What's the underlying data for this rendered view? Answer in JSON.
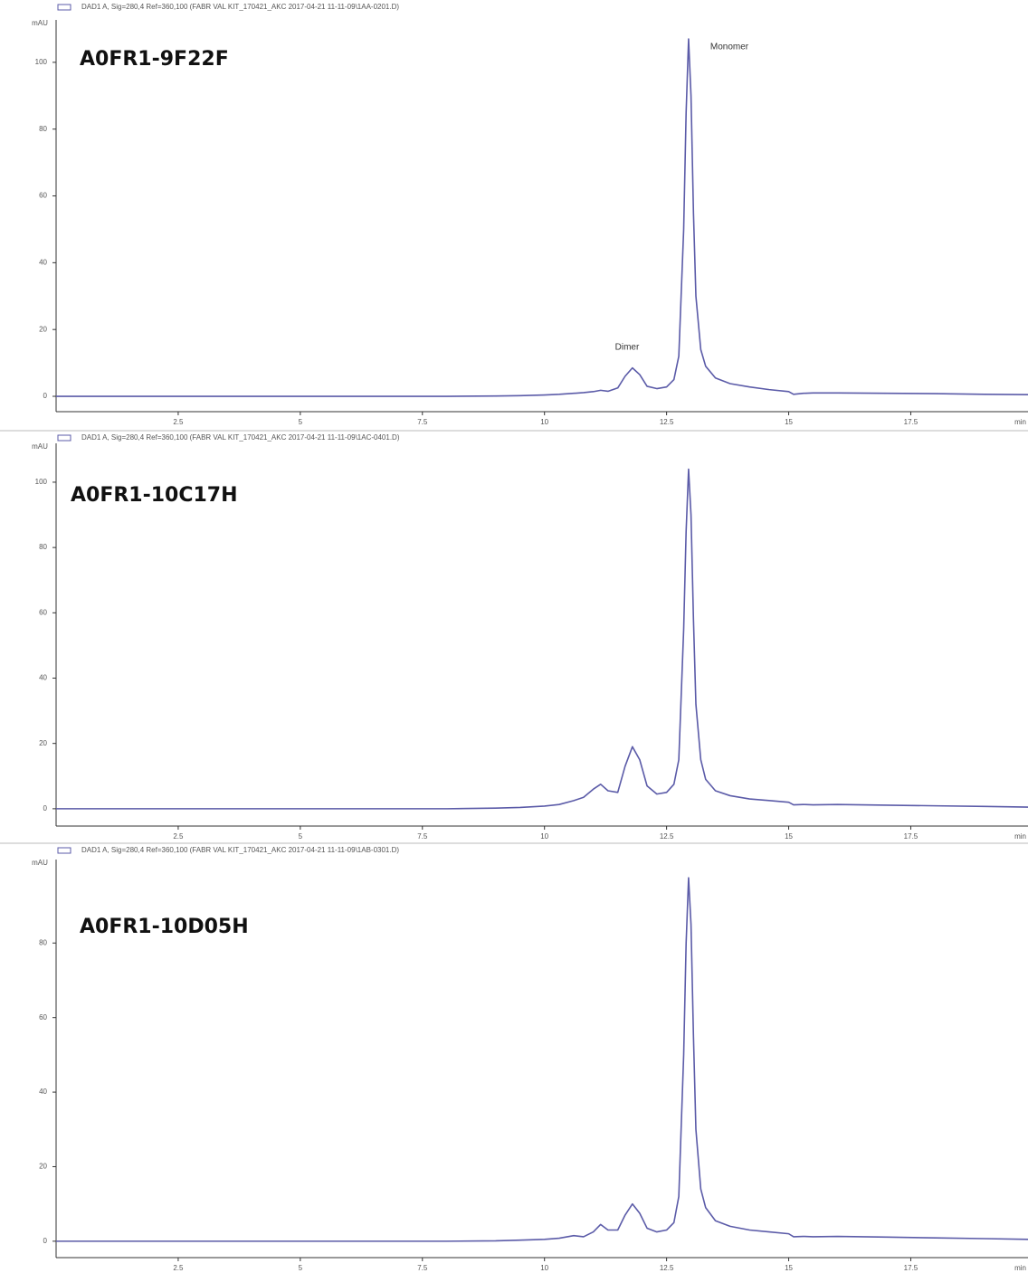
{
  "chart_data": [
    {
      "type": "line",
      "title": "A0FR1-9F22F",
      "y_label": "mAU",
      "x_label": "min",
      "annotations": [
        "Dimer",
        "Monomer"
      ],
      "x": [
        0,
        2,
        4,
        6,
        8,
        9,
        9.5,
        10,
        10.3,
        10.6,
        10.8,
        11,
        11.15,
        11.3,
        11.5,
        11.65,
        11.8,
        11.95,
        12.1,
        12.3,
        12.5,
        12.65,
        12.75,
        12.85,
        12.9,
        12.95,
        13,
        13.05,
        13.1,
        13.2,
        13.3,
        13.5,
        13.8,
        14.2,
        14.6,
        15,
        15.1,
        15.3,
        15.5,
        16,
        17,
        18,
        19,
        19.9
      ],
      "series": [
        {
          "name": "DAD1 A, Sig=280,4 Ref=360,100 (FABR VAL KIT_170421_AKC 2017-04-21 11-11-09\\1AA-0201.D)",
          "color": "#5b5ba8",
          "values": [
            0,
            0,
            0,
            0,
            0,
            0.1,
            0.2,
            0.4,
            0.6,
            0.9,
            1.1,
            1.4,
            1.8,
            1.5,
            2.5,
            6,
            8.5,
            6.5,
            3,
            2.3,
            2.8,
            5,
            12,
            50,
            85,
            107,
            90,
            55,
            30,
            14,
            9,
            5.5,
            3.8,
            2.8,
            2,
            1.4,
            0.6,
            0.9,
            1,
            1,
            0.9,
            0.8,
            0.6,
            0.5
          ]
        }
      ],
      "xlim": [
        0,
        19.9
      ],
      "ylim": [
        -4.6,
        112.7
      ],
      "xticks": [
        2.5,
        5,
        7.5,
        10,
        12.5,
        15,
        17.5
      ],
      "yticks": [
        0,
        20,
        40,
        60,
        80,
        100
      ]
    },
    {
      "type": "line",
      "title": "A0FR1-10C17H",
      "y_label": "mAU",
      "x_label": "min",
      "x": [
        0,
        2,
        4,
        6,
        8,
        9,
        9.5,
        10,
        10.3,
        10.6,
        10.8,
        11,
        11.15,
        11.3,
        11.5,
        11.65,
        11.8,
        11.95,
        12.1,
        12.3,
        12.5,
        12.65,
        12.75,
        12.85,
        12.9,
        12.95,
        13,
        13.05,
        13.1,
        13.2,
        13.3,
        13.5,
        13.8,
        14.2,
        14.6,
        15,
        15.1,
        15.3,
        15.5,
        16,
        17,
        18,
        19,
        19.9
      ],
      "series": [
        {
          "name": "DAD1 A, Sig=280,4 Ref=360,100 (FABR VAL KIT_170421_AKC 2017-04-21 11-11-09\\1AC-0401.D)",
          "color": "#5b5ba8",
          "values": [
            0,
            0,
            0,
            0,
            0,
            0.2,
            0.4,
            0.8,
            1.3,
            2.5,
            3.5,
            6,
            7.5,
            5.5,
            5,
            13,
            19,
            15,
            7,
            4.5,
            5,
            7.5,
            15,
            55,
            85,
            104,
            90,
            58,
            32,
            15,
            9,
            5.5,
            4,
            3,
            2.5,
            2,
            1.2,
            1.3,
            1.2,
            1.3,
            1.1,
            0.9,
            0.7,
            0.5
          ]
        }
      ],
      "xlim": [
        0,
        19.9
      ],
      "ylim": [
        -5.3,
        111.9
      ],
      "xticks": [
        2.5,
        5,
        7.5,
        10,
        12.5,
        15,
        17.5
      ],
      "yticks": [
        0,
        20,
        40,
        60,
        80,
        100
      ]
    },
    {
      "type": "line",
      "title": "A0FR1-10D05H",
      "y_label": "mAU",
      "x_label": "min",
      "x": [
        0,
        2,
        4,
        6,
        8,
        9,
        9.5,
        10,
        10.3,
        10.6,
        10.8,
        11,
        11.15,
        11.3,
        11.5,
        11.65,
        11.8,
        11.95,
        12.1,
        12.3,
        12.5,
        12.65,
        12.75,
        12.85,
        12.9,
        12.95,
        13,
        13.05,
        13.1,
        13.2,
        13.3,
        13.5,
        13.8,
        14.2,
        14.6,
        15,
        15.1,
        15.3,
        15.5,
        16,
        17,
        18,
        19,
        19.9
      ],
      "series": [
        {
          "name": "DAD1 A, Sig=280,4 Ref=360,100 (FABR VAL KIT_170421_AKC 2017-04-21 11-11-09\\1AB-0301.D)",
          "color": "#5b5ba8",
          "values": [
            0,
            0,
            0,
            0,
            0,
            0.1,
            0.3,
            0.5,
            0.8,
            1.5,
            1.2,
            2.5,
            4.5,
            3,
            3,
            7,
            10,
            7.5,
            3.5,
            2.5,
            3,
            5,
            12,
            50,
            80,
            97.5,
            85,
            55,
            30,
            14,
            9,
            5.5,
            4,
            3,
            2.5,
            2,
            1.2,
            1.3,
            1.2,
            1.3,
            1.1,
            0.9,
            0.7,
            0.5
          ]
        }
      ],
      "xlim": [
        0,
        19.9
      ],
      "ylim": [
        -4.4,
        102.4
      ],
      "xticks": [
        2.5,
        5,
        7.5,
        10,
        12.5,
        15,
        17.5
      ],
      "yticks": [
        0,
        20,
        40,
        60,
        80
      ]
    }
  ]
}
